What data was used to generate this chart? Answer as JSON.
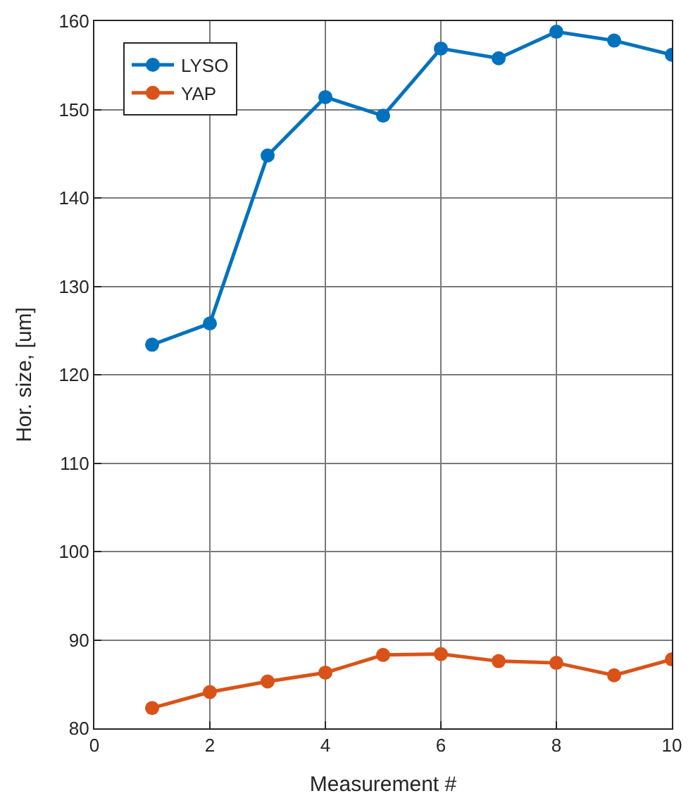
{
  "chart_data": {
    "type": "line",
    "xlabel": "Measurement #",
    "ylabel": "Hor. size, [um]",
    "x": [
      1,
      2,
      3,
      4,
      5,
      6,
      7,
      8,
      9,
      10
    ],
    "series": [
      {
        "name": "LYSO",
        "color": "#0072bd",
        "values": [
          123.4,
          125.8,
          144.8,
          151.4,
          149.3,
          156.9,
          155.8,
          158.8,
          157.8,
          156.2
        ]
      },
      {
        "name": "YAP",
        "color": "#d95319",
        "values": [
          82.3,
          84.1,
          85.3,
          86.3,
          88.3,
          88.4,
          87.6,
          87.4,
          86.0,
          87.8
        ]
      }
    ],
    "xlim": [
      0,
      10
    ],
    "xticks": [
      0,
      2,
      4,
      6,
      8,
      10
    ],
    "ylim": [
      80,
      160
    ],
    "yticks": [
      80,
      90,
      100,
      110,
      120,
      130,
      140,
      150,
      160
    ],
    "grid": true,
    "legend": "top left",
    "marker": "circle",
    "line_style": "solid"
  }
}
